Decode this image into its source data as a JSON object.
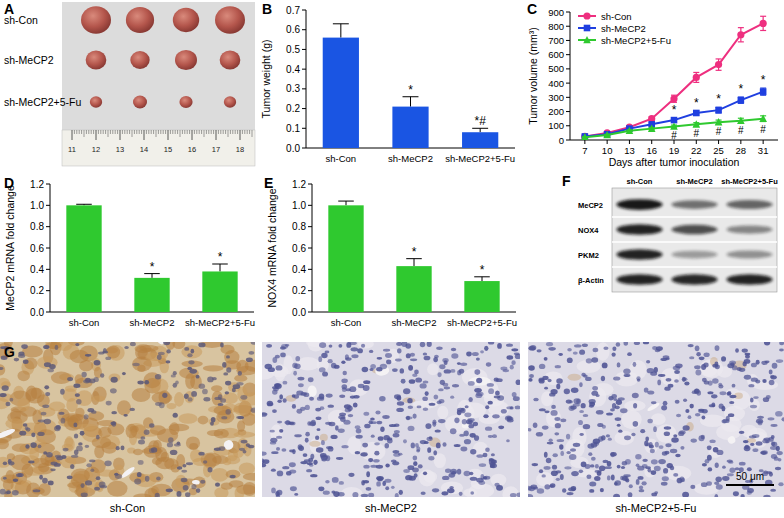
{
  "photo_panel": {
    "title": "A",
    "rows": [
      "sh-Con",
      "sh-MeCP2",
      "sh-MeCP2+5-Fu"
    ],
    "ruler_labels": [
      11,
      12,
      13,
      14,
      15,
      16,
      17,
      18
    ]
  },
  "chart_data": [
    {
      "type": "bar",
      "title": "B",
      "y_label": "Tumor weight (g)",
      "categories": [
        "sh-Con",
        "sh-MeCP2",
        "sh-MeCP2+5-Fu"
      ],
      "values": [
        0.56,
        0.21,
        0.08
      ],
      "errors": [
        0.07,
        0.05,
        0.02
      ],
      "annotations": [
        null,
        "*",
        "*#"
      ],
      "color": "#1a55e3",
      "ylim": [
        0,
        0.7
      ],
      "yticks": [
        {
          "value": 0,
          "label": "0.0"
        },
        0.1,
        0.2,
        0.3,
        0.4,
        0.5,
        0.6,
        0.7
      ]
    },
    {
      "type": "line",
      "title": "C",
      "x_label": "Days after tumor inoculation",
      "y_label": "Tumor volume (mm³)",
      "x": [
        7,
        10,
        13,
        16,
        19,
        22,
        25,
        28,
        31
      ],
      "series": [
        {
          "name": "sh-Con",
          "color": "#ee2f7f",
          "marker": "circle",
          "values": [
            25,
            50,
            90,
            150,
            290,
            440,
            530,
            740,
            820
          ],
          "errors": [
            4,
            6,
            10,
            15,
            25,
            35,
            40,
            50,
            50
          ],
          "annotations": [
            null,
            null,
            null,
            null,
            null,
            null,
            null,
            null,
            null
          ]
        },
        {
          "name": "sh-MeCP2",
          "color": "#1f3fe0",
          "marker": "square",
          "values": [
            25,
            40,
            80,
            110,
            140,
            190,
            210,
            280,
            340
          ],
          "errors": [
            3,
            5,
            8,
            12,
            15,
            15,
            20,
            22,
            25
          ],
          "annotations": [
            null,
            null,
            null,
            null,
            "*",
            "*",
            "*",
            "*",
            "*"
          ]
        },
        {
          "name": "sh-MeCP2+5-Fu",
          "color": "#2fc92f",
          "marker": "triangle",
          "values": [
            20,
            35,
            65,
            80,
            95,
            110,
            125,
            135,
            150
          ],
          "errors": [
            3,
            5,
            6,
            8,
            10,
            12,
            15,
            18,
            20
          ],
          "annotations": [
            null,
            null,
            null,
            null,
            "#",
            "#",
            "#",
            "#",
            "#"
          ]
        }
      ],
      "xlim": [
        5,
        33
      ],
      "xticks": [
        7,
        10,
        13,
        16,
        19,
        22,
        25,
        28,
        31
      ],
      "ylim": [
        0,
        900
      ],
      "yticks": [
        0,
        100,
        200,
        300,
        400,
        500,
        600,
        700,
        800,
        900
      ],
      "legend": "upper left"
    },
    {
      "type": "bar",
      "title": "D",
      "y_label": "MeCP2 mRNA fold change",
      "categories": [
        "sh-Con",
        "sh-MeCP2",
        "sh-MeCP2+5-Fu"
      ],
      "values": [
        1.0,
        0.32,
        0.38
      ],
      "errors": [
        0.01,
        0.04,
        0.07
      ],
      "annotations": [
        null,
        "*",
        "*"
      ],
      "color": "#2fc92f",
      "ylim": [
        0,
        1.2
      ],
      "yticks": [
        {
          "value": 0,
          "label": "0.0"
        },
        0.2,
        0.4,
        0.6,
        0.8,
        {
          "value": 1,
          "label": "1.0"
        },
        1.2
      ]
    },
    {
      "type": "bar",
      "title": "E",
      "y_label": "NOX4 mRNA fold change",
      "categories": [
        "sh-Con",
        "sh-MeCP2",
        "sh-MeCP2+5-Fu"
      ],
      "values": [
        1.0,
        0.43,
        0.29
      ],
      "errors": [
        0.04,
        0.07,
        0.04
      ],
      "annotations": [
        null,
        "*",
        "*"
      ],
      "color": "#2fc92f",
      "ylim": [
        0,
        1.2
      ],
      "yticks": [
        {
          "value": 0,
          "label": "0.0"
        },
        0.2,
        0.4,
        0.6,
        0.8,
        {
          "value": 1,
          "label": "1.0"
        },
        1.2
      ]
    }
  ],
  "blot_panel": {
    "title": "F",
    "columns": [
      "sh-Con",
      "sh-MeCP2",
      "sh-MeCP2+5-Fu"
    ],
    "rows": [
      "MeCP2",
      "NOX4",
      "PKM2",
      "β-Actin"
    ]
  },
  "ihc_panel": {
    "title": "G",
    "labels": [
      "sh-Con",
      "sh-MeCP2",
      "sh-MeCP2+5-Fu"
    ],
    "scale_bar": "50 μm"
  }
}
